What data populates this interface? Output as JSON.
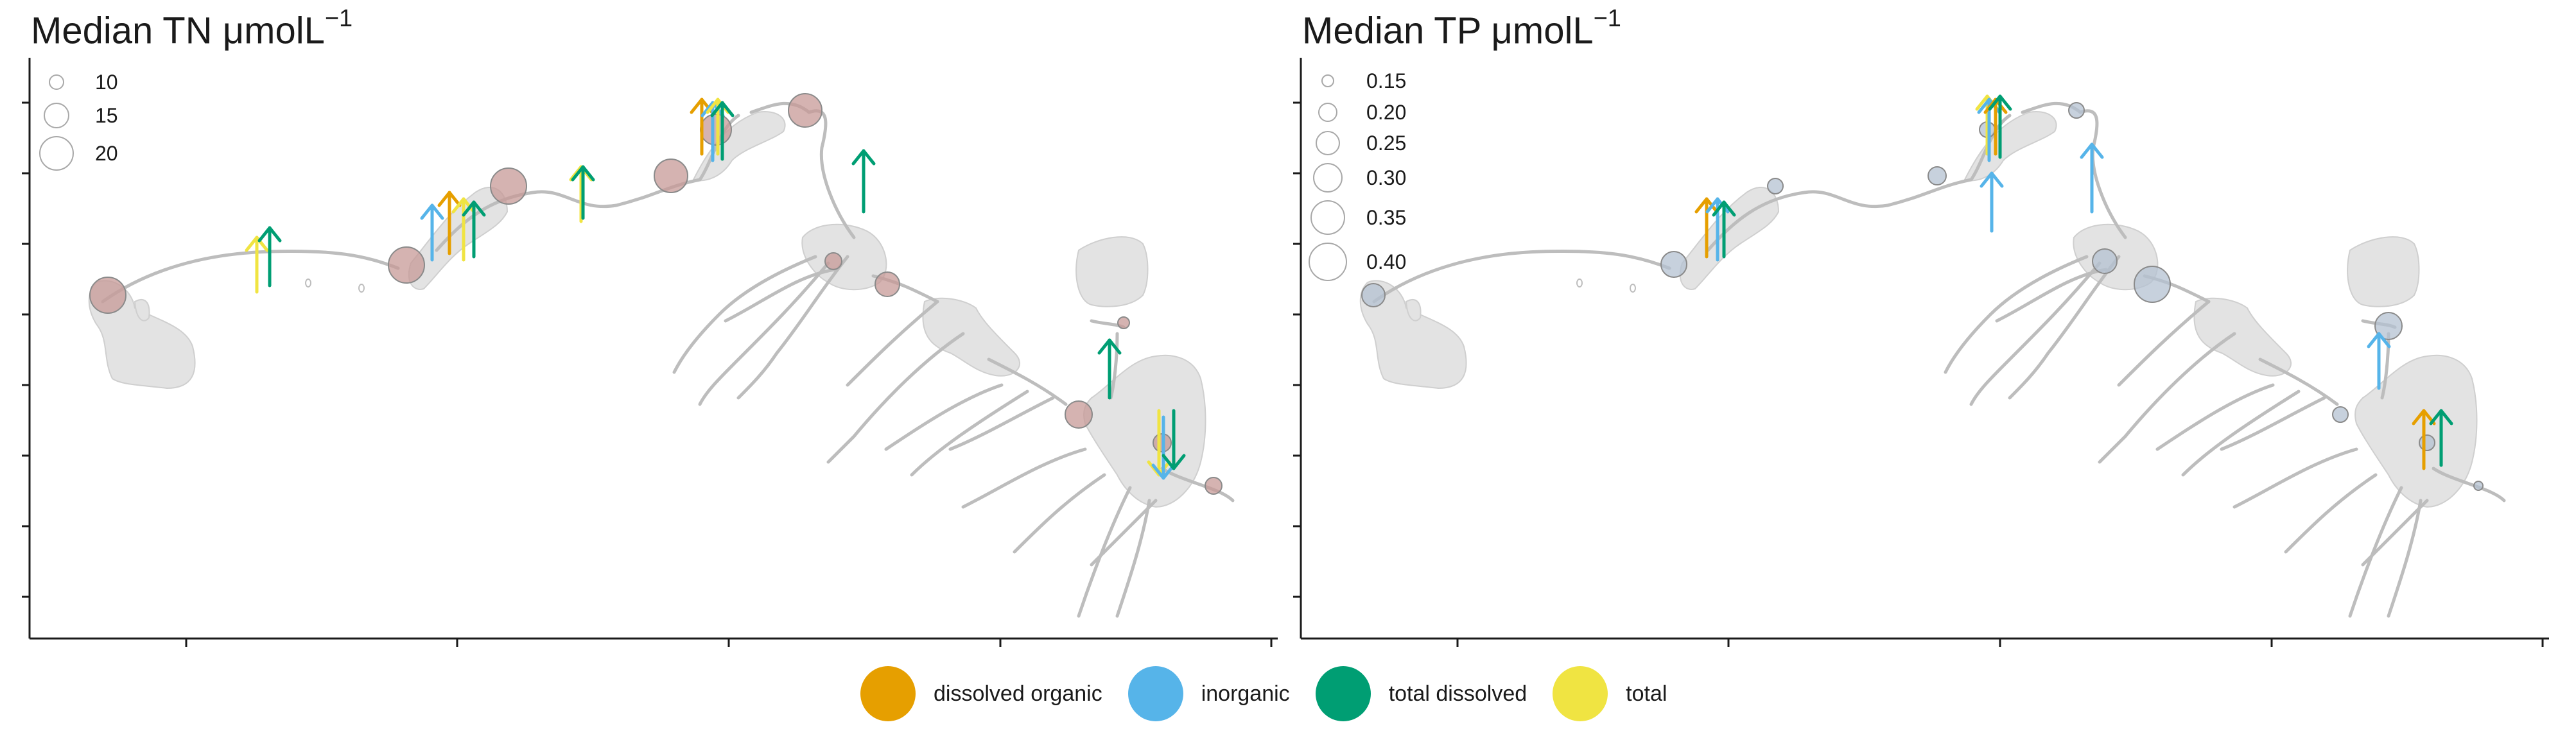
{
  "panels": {
    "tn": {
      "title": "Median TN μmolL",
      "title_sup": "−1",
      "marker_color": "#c79a97",
      "size_legend": [
        "10",
        "15",
        "20"
      ]
    },
    "tp": {
      "title": "Median TP μmolL",
      "title_sup": "−1",
      "marker_color": "#b4c2d2",
      "size_legend": [
        "0.15",
        "0.20",
        "0.25",
        "0.30",
        "0.35",
        "0.40"
      ]
    }
  },
  "legend": {
    "items": [
      {
        "label": "dissolved organic",
        "color": "#e69f00"
      },
      {
        "label": "inorganic",
        "color": "#56b4e9"
      },
      {
        "label": "total dissolved",
        "color": "#009e73"
      },
      {
        "label": "total",
        "color": "#f0e442"
      }
    ]
  },
  "map": {
    "water_color": "#e3e3e3",
    "river_color": "#bdbdbd",
    "axis_color": "#1a1a1a"
  }
}
